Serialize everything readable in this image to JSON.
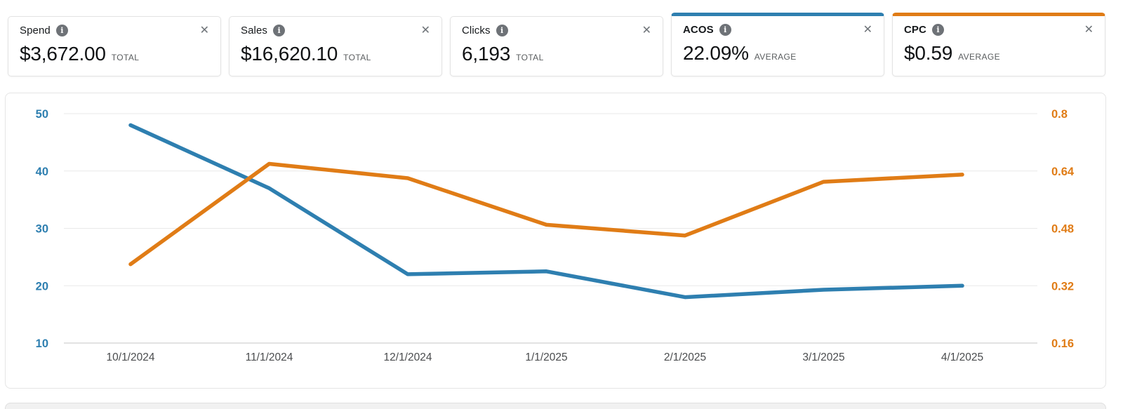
{
  "colors": {
    "acos_blue": "#2e7fb0",
    "cpc_orange": "#e07c16",
    "gridline": "#e9e9e9",
    "axis_baseline": "#c6c6c6",
    "x_label": "#4a4c4e"
  },
  "icons": {
    "info": "i",
    "close": "✕"
  },
  "metrics": {
    "cards": [
      {
        "label": "Spend",
        "value": "$3,672.00",
        "unit": "TOTAL",
        "selected": false
      },
      {
        "label": "Sales",
        "value": "$16,620.10",
        "unit": "TOTAL",
        "selected": false
      },
      {
        "label": "Clicks",
        "value": "6,193",
        "unit": "TOTAL",
        "selected": false
      },
      {
        "label": "ACOS",
        "value": "22.09%",
        "unit": "AVERAGE",
        "selected": true
      },
      {
        "label": "CPC",
        "value": "$0.59",
        "unit": "AVERAGE",
        "selected": true
      }
    ]
  },
  "chart_data": {
    "type": "line",
    "x": [
      "10/1/2024",
      "11/1/2024",
      "12/1/2024",
      "1/1/2025",
      "2/1/2025",
      "3/1/2025",
      "4/1/2025"
    ],
    "series": [
      {
        "name": "ACOS",
        "axis": "left",
        "color_key": "acos_blue",
        "values": [
          48,
          37,
          22,
          22.5,
          18,
          19.3,
          20
        ]
      },
      {
        "name": "CPC",
        "axis": "right",
        "color_key": "cpc_orange",
        "values": [
          0.38,
          0.66,
          0.62,
          0.49,
          0.46,
          0.61,
          0.63
        ]
      }
    ],
    "left_axis": {
      "range": [
        10,
        50
      ],
      "ticks": [
        50,
        40,
        30,
        20,
        10
      ],
      "color_key": "acos_blue"
    },
    "right_axis": {
      "range": [
        0.16,
        0.8
      ],
      "ticks": [
        0.8,
        0.64,
        0.48,
        0.32,
        0.16
      ],
      "color_key": "cpc_orange"
    },
    "grid": true,
    "legend": "none"
  }
}
